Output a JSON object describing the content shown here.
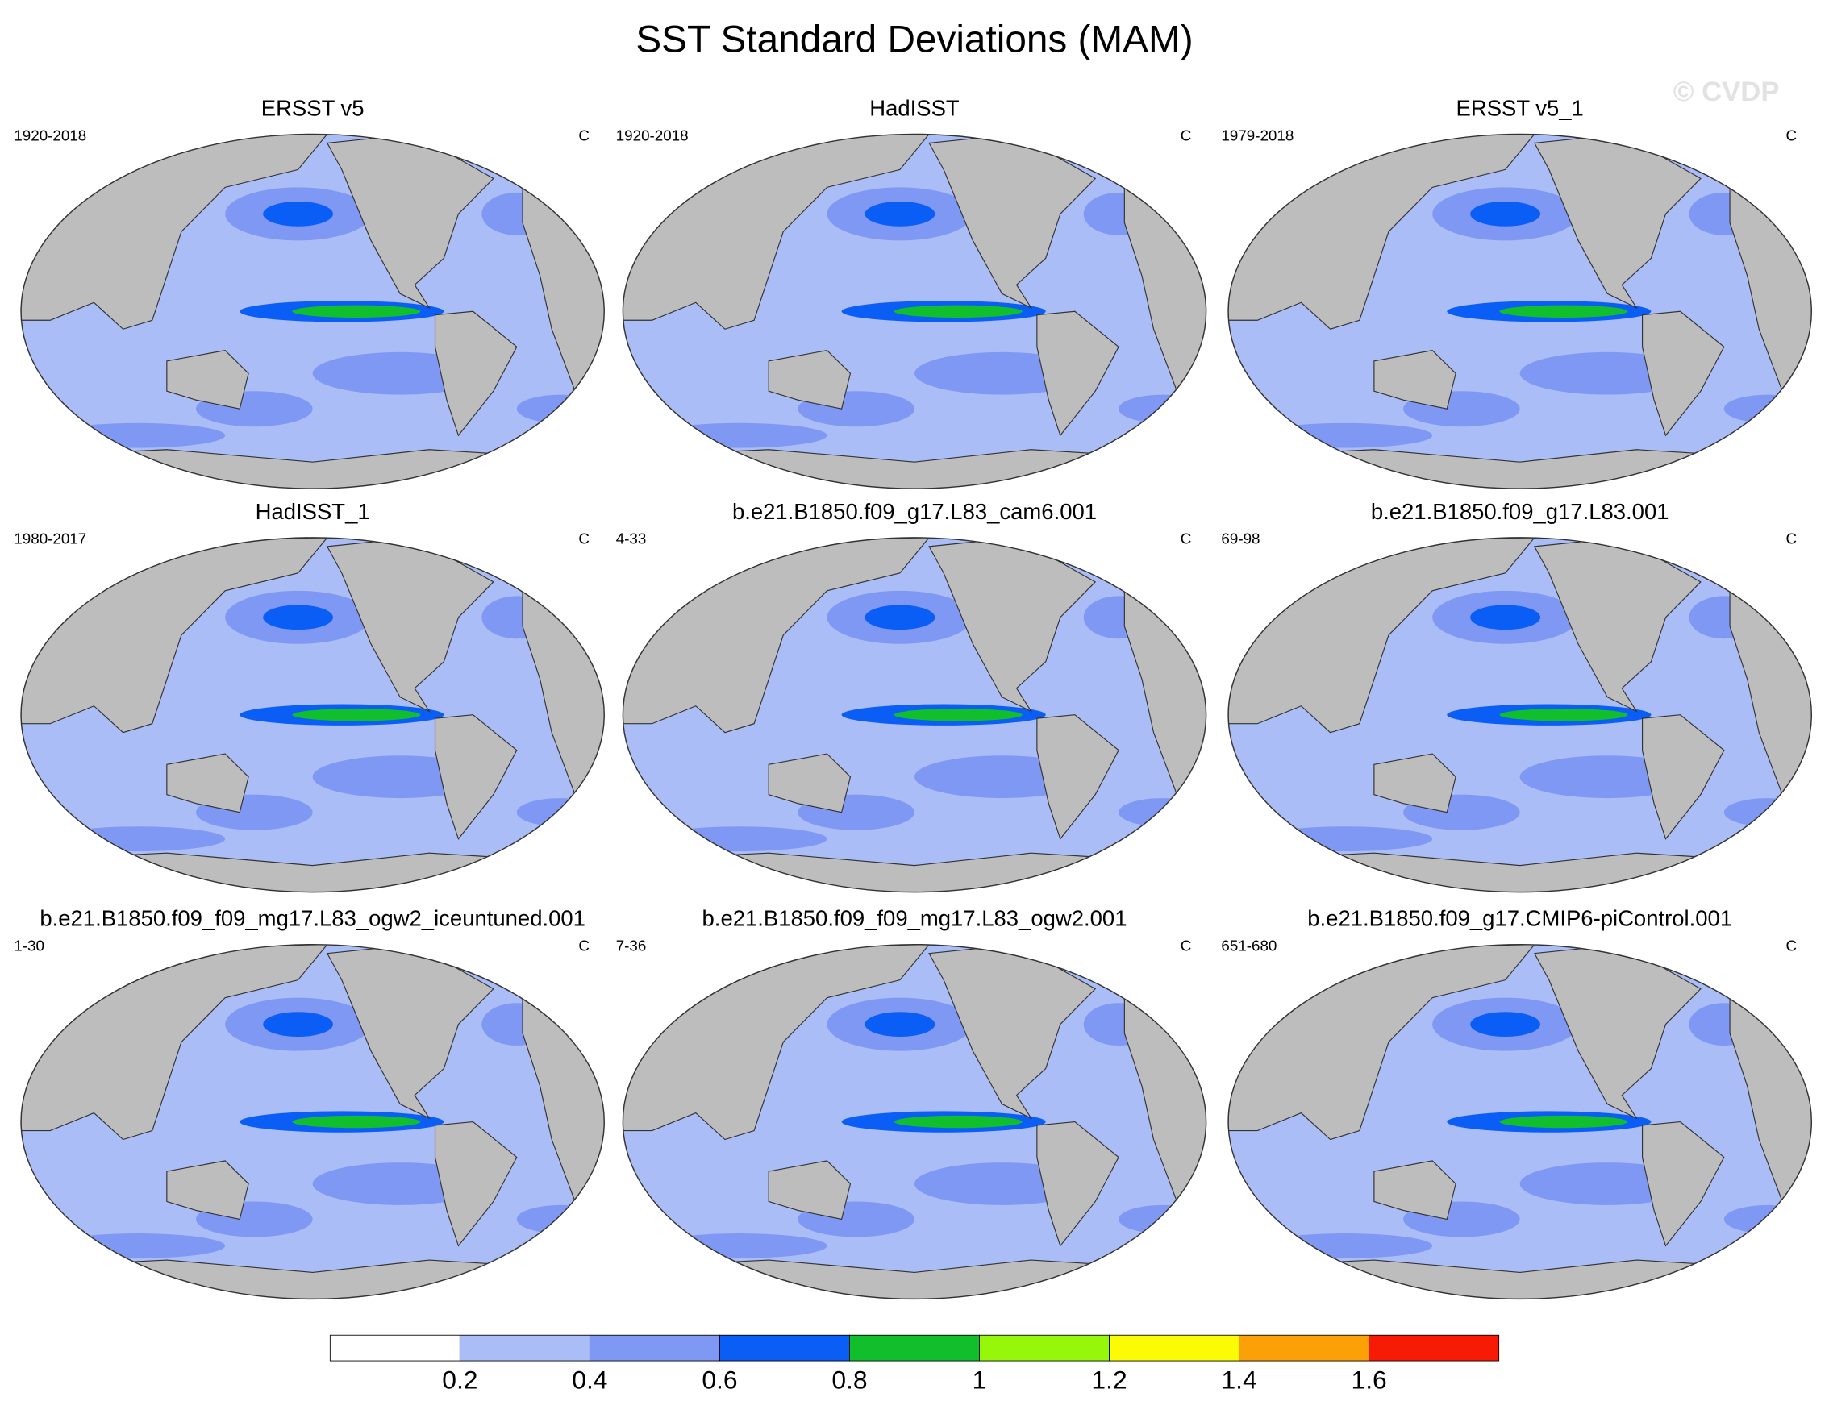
{
  "title": "SST Standard Deviations (MAM)",
  "watermark": "© CVDP",
  "panels": [
    {
      "title": "ERSST v5",
      "period": "1920-2018",
      "units": "C"
    },
    {
      "title": "HadISST",
      "period": "1920-2018",
      "units": "C"
    },
    {
      "title": "ERSST v5_1",
      "period": "1979-2018",
      "units": "C"
    },
    {
      "title": "HadISST_1",
      "period": "1980-2017",
      "units": "C"
    },
    {
      "title": "b.e21.B1850.f09_g17.L83_cam6.001",
      "period": "4-33",
      "units": "C"
    },
    {
      "title": "b.e21.B1850.f09_g17.L83.001",
      "period": "69-98",
      "units": "C"
    },
    {
      "title": "b.e21.B1850.f09_f09_mg17.L83_ogw2_iceuntuned.001",
      "period": "1-30",
      "units": "C"
    },
    {
      "title": "b.e21.B1850.f09_f09_mg17.L83_ogw2.001",
      "period": "7-36",
      "units": "C"
    },
    {
      "title": "b.e21.B1850.f09_g17.CMIP6-piControl.001",
      "period": "651-680",
      "units": "C"
    }
  ],
  "colorbar": {
    "colors": [
      "#ffffff",
      "#aabdf7",
      "#7f98f4",
      "#0a5ef6",
      "#10bf2b",
      "#96f70b",
      "#fbfb06",
      "#fba006",
      "#f71b06"
    ],
    "ticks": [
      0.2,
      0.4,
      0.6,
      0.8,
      1,
      1.2,
      1.4,
      1.6
    ]
  }
}
